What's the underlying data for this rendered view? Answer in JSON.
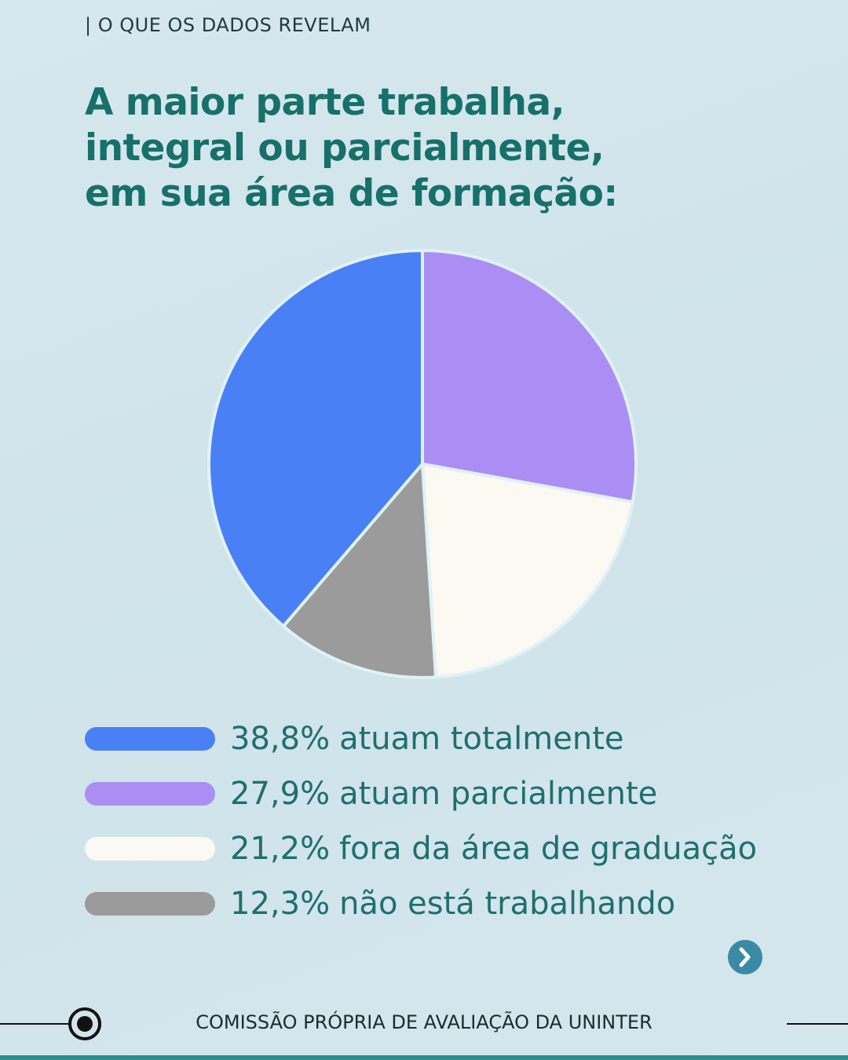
{
  "kicker": "| O QUE OS DADOS REVELAM",
  "footer": "COMISSÃO PRÓPRIA DE AVALIAÇÃO DA UNINTER",
  "chart_data": {
    "type": "pie",
    "title": "A maior parte trabalha, integral ou parcialmente, em sua área de formação:",
    "categories": [
      "atuam totalmente",
      "atuam parcialmente",
      "fora da área de graduação",
      "não está trabalhando"
    ],
    "values": [
      38.8,
      27.9,
      21.2,
      12.3
    ],
    "value_labels": [
      "38,8%",
      "27,9%",
      "21,2%",
      "12,3%"
    ],
    "colors": [
      "#4a80f6",
      "#ab8ef4",
      "#fbf9f2",
      "#9b9b9b"
    ]
  }
}
